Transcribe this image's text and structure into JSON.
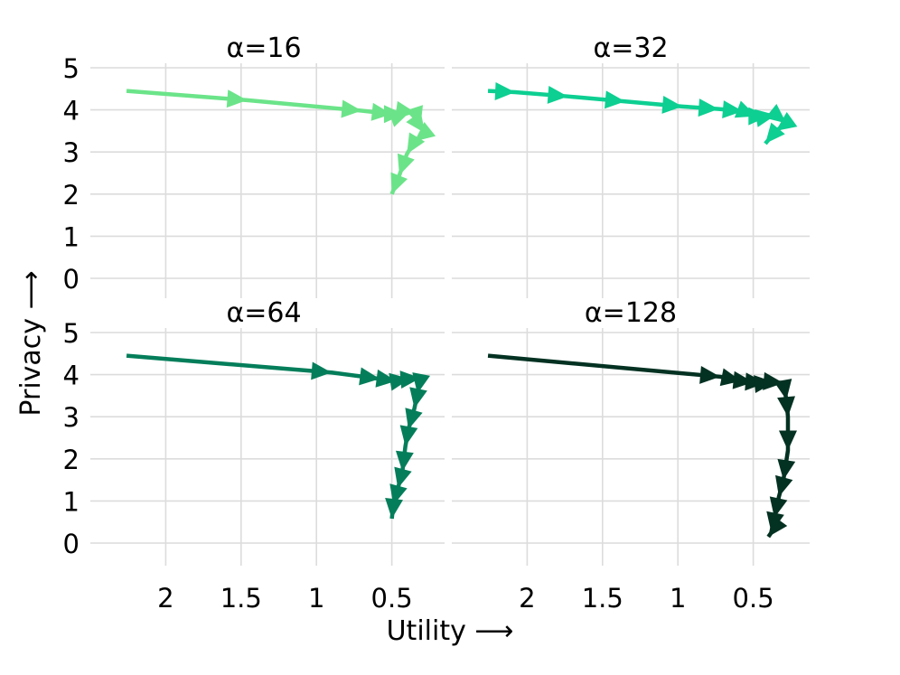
{
  "chart_data": {
    "type": "line",
    "xlabel": "Utility ⟶",
    "ylabel": "Privacy ⟶",
    "xlim": [
      2.5,
      0.15
    ],
    "ylim": [
      -0.6,
      5
    ],
    "xticks": [
      2,
      1.5,
      1,
      0.5
    ],
    "xtick_labels": [
      "2",
      "1.5",
      "1",
      "0.5"
    ],
    "yticks": [
      0,
      1,
      2,
      3,
      4,
      5
    ],
    "ytick_labels": [
      "0",
      "1",
      "2",
      "3",
      "4",
      "5"
    ],
    "grid": true,
    "panels": [
      {
        "title": "α=16",
        "color": "#6be489",
        "points": [
          {
            "x": 2.26,
            "y": 4.45
          },
          {
            "x": 1.46,
            "y": 4.23
          },
          {
            "x": 0.7,
            "y": 3.98
          },
          {
            "x": 0.5,
            "y": 3.9
          },
          {
            "x": 0.42,
            "y": 3.9
          },
          {
            "x": 0.38,
            "y": 3.95
          },
          {
            "x": 0.34,
            "y": 3.93
          },
          {
            "x": 0.31,
            "y": 3.6
          },
          {
            "x": 0.28,
            "y": 3.45
          },
          {
            "x": 0.35,
            "y": 3.25
          },
          {
            "x": 0.4,
            "y": 2.95
          },
          {
            "x": 0.45,
            "y": 2.45
          },
          {
            "x": 0.5,
            "y": 2.0
          }
        ]
      },
      {
        "title": "α=32",
        "color": "#0dcf91",
        "points": [
          {
            "x": 2.26,
            "y": 4.45
          },
          {
            "x": 2.08,
            "y": 4.42
          },
          {
            "x": 1.73,
            "y": 4.32
          },
          {
            "x": 1.35,
            "y": 4.2
          },
          {
            "x": 0.97,
            "y": 4.08
          },
          {
            "x": 0.73,
            "y": 4.02
          },
          {
            "x": 0.57,
            "y": 3.97
          },
          {
            "x": 0.48,
            "y": 3.85
          },
          {
            "x": 0.4,
            "y": 3.85
          },
          {
            "x": 0.35,
            "y": 3.88
          },
          {
            "x": 0.28,
            "y": 3.68
          },
          {
            "x": 0.35,
            "y": 3.5
          },
          {
            "x": 0.42,
            "y": 3.2
          }
        ]
      },
      {
        "title": "α=64",
        "color": "#047e5a",
        "points": [
          {
            "x": 2.26,
            "y": 4.45
          },
          {
            "x": 0.9,
            "y": 4.05
          },
          {
            "x": 0.58,
            "y": 3.9
          },
          {
            "x": 0.47,
            "y": 3.85
          },
          {
            "x": 0.38,
            "y": 3.9
          },
          {
            "x": 0.31,
            "y": 3.92
          },
          {
            "x": 0.33,
            "y": 3.55
          },
          {
            "x": 0.35,
            "y": 3.2
          },
          {
            "x": 0.39,
            "y": 2.7
          },
          {
            "x": 0.41,
            "y": 2.3
          },
          {
            "x": 0.43,
            "y": 1.7
          },
          {
            "x": 0.46,
            "y": 1.3
          },
          {
            "x": 0.49,
            "y": 0.9
          },
          {
            "x": 0.5,
            "y": 0.58
          }
        ]
      },
      {
        "title": "α=128",
        "color": "#033122",
        "points": [
          {
            "x": 2.26,
            "y": 4.45
          },
          {
            "x": 0.72,
            "y": 3.95
          },
          {
            "x": 0.58,
            "y": 3.85
          },
          {
            "x": 0.5,
            "y": 3.82
          },
          {
            "x": 0.42,
            "y": 3.8
          },
          {
            "x": 0.36,
            "y": 3.82
          },
          {
            "x": 0.3,
            "y": 3.8
          },
          {
            "x": 0.28,
            "y": 3.4
          },
          {
            "x": 0.27,
            "y": 3.0
          },
          {
            "x": 0.27,
            "y": 2.2
          },
          {
            "x": 0.3,
            "y": 1.5
          },
          {
            "x": 0.33,
            "y": 1.1
          },
          {
            "x": 0.36,
            "y": 0.6
          },
          {
            "x": 0.38,
            "y": 0.25
          },
          {
            "x": 0.4,
            "y": 0.15
          }
        ]
      }
    ]
  }
}
